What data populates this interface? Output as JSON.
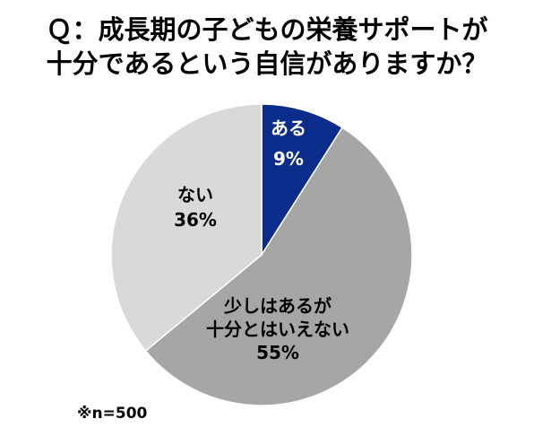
{
  "chart_data": {
    "type": "pie",
    "title_lines": [
      "Ｑ：成長期の子どもの栄養サポートが",
      "十分であるという自信がありますか？"
    ],
    "slices": [
      {
        "label_lines": [
          "ある"
        ],
        "value": 9,
        "value_label": "9%",
        "color": "#0a2d8c",
        "text_color": "#ffffff"
      },
      {
        "label_lines": [
          "少しはあるが",
          "十分とはいえない"
        ],
        "value": 55,
        "value_label": "55%",
        "color": "#a6a6a6",
        "text_color": "#000000"
      },
      {
        "label_lines": [
          "ない"
        ],
        "value": 36,
        "value_label": "36%",
        "color": "#d9d9d9",
        "text_color": "#000000"
      }
    ],
    "note": "※n=500"
  }
}
